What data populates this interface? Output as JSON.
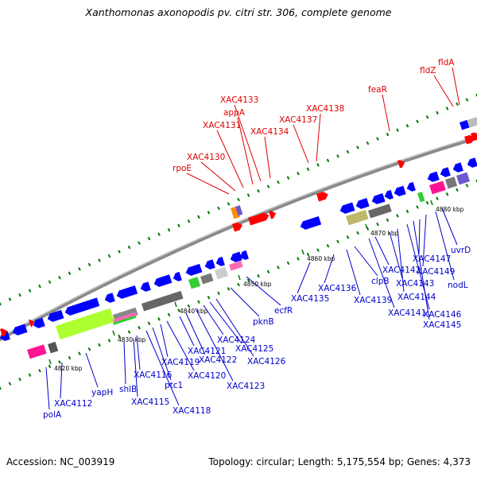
{
  "title": "Xanthomonas axonopodis pv. citri str. 306, complete genome",
  "footer": {
    "accession": "Accession: NC_003919",
    "summary": "Topology: circular; Length: 5,175,554 bp; Genes: 4,373"
  },
  "colors": {
    "upper_labels": "#e00000",
    "lower_labels": "#0000cc",
    "ring": "#808080",
    "forward_feature": "#ff0000",
    "reverse_feature": "#0000ff",
    "dots": "#007700"
  },
  "kbp_ticks": [
    "4820 kbp",
    "4830 kbp",
    "4840 kbp",
    "4850 kbp",
    "4860 kbp",
    "4870 kbp",
    "4880 kbp"
  ],
  "upper_genes": [
    {
      "label": "rpoE"
    },
    {
      "label": "XAC4130"
    },
    {
      "label": "XAC4131"
    },
    {
      "label": "appA"
    },
    {
      "label": "XAC4133"
    },
    {
      "label": "XAC4134"
    },
    {
      "label": "XAC4137"
    },
    {
      "label": "XAC4138"
    },
    {
      "label": "feaR"
    },
    {
      "label": "fldZ"
    },
    {
      "label": "fldA"
    }
  ],
  "lower_genes": [
    {
      "label": "polA"
    },
    {
      "label": "XAC4112"
    },
    {
      "label": "yapH"
    },
    {
      "label": "shlB"
    },
    {
      "label": "XAC4115"
    },
    {
      "label": "XAC4116"
    },
    {
      "label": "XAC4118"
    },
    {
      "label": "ptc1"
    },
    {
      "label": "XAC4119"
    },
    {
      "label": "XAC4120"
    },
    {
      "label": "XAC4121"
    },
    {
      "label": "XAC4122"
    },
    {
      "label": "XAC4123"
    },
    {
      "label": "XAC4124"
    },
    {
      "label": "XAC4125"
    },
    {
      "label": "XAC4126"
    },
    {
      "label": "pknB"
    },
    {
      "label": "ecfR"
    },
    {
      "label": "XAC4135"
    },
    {
      "label": "XAC4136"
    },
    {
      "label": "XAC4139"
    },
    {
      "label": "clpB"
    },
    {
      "label": "XAC4141"
    },
    {
      "label": "XAC4142"
    },
    {
      "label": "XAC4143"
    },
    {
      "label": "XAC4144"
    },
    {
      "label": "XAC4146"
    },
    {
      "label": "XAC4145"
    },
    {
      "label": "XAC4147"
    },
    {
      "label": "XAC4149"
    },
    {
      "label": "nodL"
    },
    {
      "label": "uvrD"
    }
  ]
}
